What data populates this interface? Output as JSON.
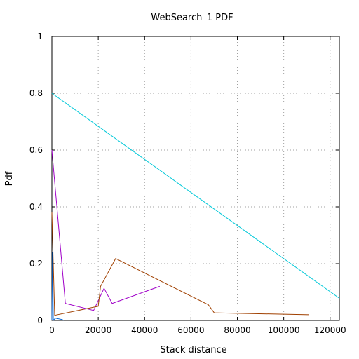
{
  "chart_data": {
    "type": "line",
    "title": "WebSearch_1 PDF",
    "xlabel": "Stack distance",
    "ylabel": "Pdf",
    "xlim": [
      0,
      124000
    ],
    "ylim": [
      0,
      1
    ],
    "xticks": [
      0,
      20000,
      40000,
      60000,
      80000,
      100000,
      120000
    ],
    "yticks": [
      0,
      0.2,
      0.4,
      0.6,
      0.8,
      1
    ],
    "xtick_labels": [
      "0",
      "20000",
      "40000",
      "60000",
      "80000",
      "100000",
      "120000"
    ],
    "ytick_labels": [
      "0",
      "0.2",
      "0.4",
      "0.6",
      "0.8",
      "1"
    ],
    "grid": true,
    "series": [
      {
        "color": "#00c8d8",
        "points": [
          [
            0,
            0.8
          ],
          [
            124000,
            0.078
          ]
        ]
      },
      {
        "color": "#a000c8",
        "points": [
          [
            0,
            0.6
          ],
          [
            5800,
            0.06
          ],
          [
            18000,
            0.035
          ],
          [
            22500,
            0.113
          ],
          [
            26000,
            0.06
          ],
          [
            46500,
            0.12
          ]
        ]
      },
      {
        "color": "#a04000",
        "points": [
          [
            0,
            0.38
          ],
          [
            1200,
            0.018
          ],
          [
            20000,
            0.05
          ],
          [
            21000,
            0.12
          ],
          [
            27500,
            0.218
          ],
          [
            67500,
            0.055
          ],
          [
            70000,
            0.027
          ],
          [
            80000,
            0.025
          ],
          [
            100000,
            0.022
          ],
          [
            111000,
            0.02
          ]
        ]
      },
      {
        "color": "#0060d0",
        "points": [
          [
            0,
            0.0
          ],
          [
            300,
            0.24
          ],
          [
            600,
            0.0
          ],
          [
            1500,
            0.008
          ],
          [
            4500,
            0.003
          ],
          [
            5000,
            0.0
          ]
        ]
      }
    ]
  }
}
